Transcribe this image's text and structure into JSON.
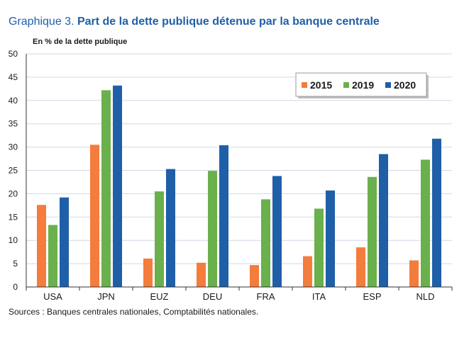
{
  "title": {
    "prefix": "Graphique 3. ",
    "main": "Part de la dette publique détenue par la banque centrale"
  },
  "unit_label": "En % de la dette publique",
  "source": "Sources : Banques centrales nationales, Comptabilités nationales.",
  "colors": {
    "2015": "#f47c3c",
    "2019": "#6ab04c",
    "2020": "#1f5fa8",
    "grid": "#cfd8e6",
    "axis": "#333333"
  },
  "chart_data": {
    "type": "bar",
    "categories": [
      "USA",
      "JPN",
      "EUZ",
      "DEU",
      "FRA",
      "ITA",
      "ESP",
      "NLD"
    ],
    "series": [
      {
        "name": "2015",
        "values": [
          17.6,
          30.5,
          6.1,
          5.2,
          4.7,
          6.6,
          8.5,
          5.7
        ]
      },
      {
        "name": "2019",
        "values": [
          13.3,
          42.2,
          20.5,
          24.9,
          18.8,
          16.8,
          23.6,
          27.3
        ]
      },
      {
        "name": "2020",
        "values": [
          19.2,
          43.2,
          25.3,
          30.4,
          23.8,
          20.7,
          28.5,
          31.8
        ]
      }
    ],
    "ylim": [
      0,
      50
    ],
    "yticks": [
      "0",
      "5",
      "10",
      "15",
      "20",
      "25",
      "30",
      "35",
      "40",
      "45",
      "50"
    ],
    "legend_position": "top-right",
    "grid": true
  }
}
